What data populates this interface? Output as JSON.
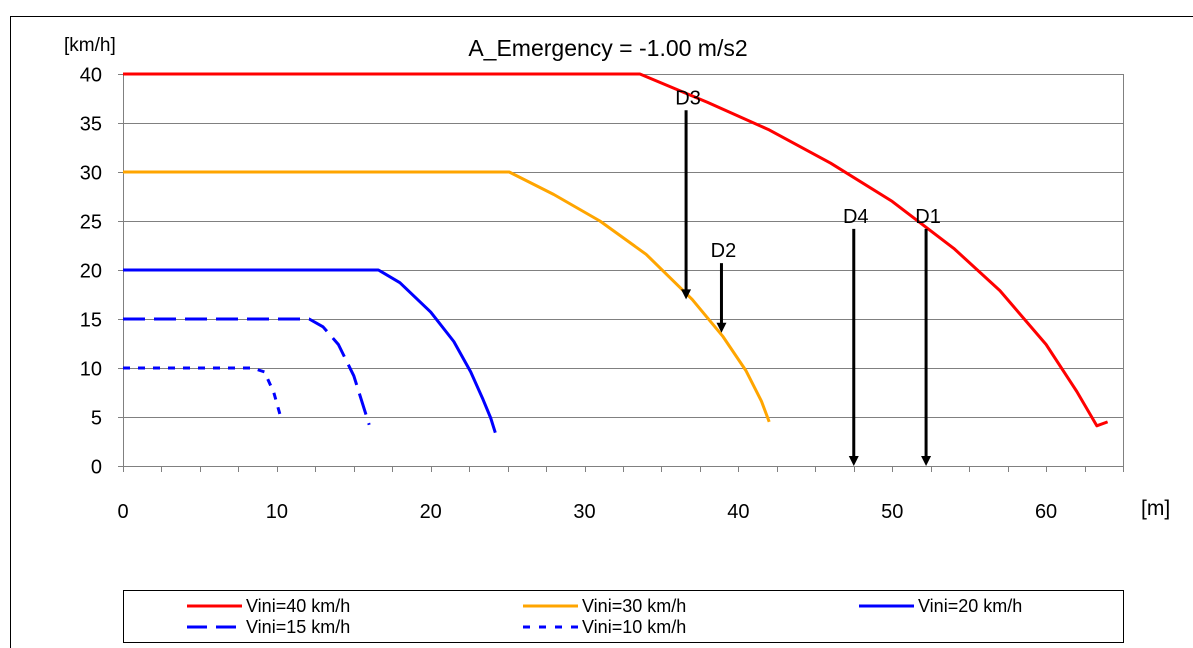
{
  "chart_data": {
    "type": "line",
    "title": "A_Emergency = -1.00 m/s2",
    "ylabel": "[km/h]",
    "xlabel": "[m]",
    "xlim": [
      0,
      65
    ],
    "ylim": [
      0,
      40
    ],
    "xticks": [
      0,
      10,
      20,
      30,
      40,
      50,
      60
    ],
    "yticks": [
      0,
      5,
      10,
      15,
      20,
      25,
      30,
      35,
      40
    ],
    "grid": "horizontal",
    "legend_position": "bottom",
    "series": [
      {
        "name": "Vini=40 km/h",
        "color": "#ff0000",
        "dash": "solid",
        "x": [
          0,
          33.6,
          38,
          42,
          46,
          50,
          54,
          57,
          60,
          62,
          63.3,
          64
        ],
        "y": [
          40,
          40,
          37.1,
          34.3,
          30.9,
          27.0,
          22.2,
          17.9,
          12.4,
          7.6,
          4.1,
          4.5
        ]
      },
      {
        "name": "Vini=30 km/h",
        "color": "#ffa500",
        "dash": "solid",
        "x": [
          0,
          25.1,
          28,
          31,
          34,
          37,
          39,
          40.5,
          41.5,
          42
        ],
        "y": [
          30,
          30,
          27.7,
          25.0,
          21.6,
          17.0,
          13.2,
          9.7,
          6.6,
          4.5
        ]
      },
      {
        "name": "Vini=20 km/h",
        "color": "#0000ff",
        "dash": "solid",
        "x": [
          0,
          16.6,
          18,
          20,
          21.5,
          22.6,
          23.4,
          23.9,
          24.2
        ],
        "y": [
          20,
          20,
          18.7,
          15.7,
          12.7,
          9.6,
          6.8,
          4.9,
          3.4
        ]
      },
      {
        "name": "Vini=15 km/h",
        "color": "#0000ff",
        "dash": "dashed",
        "x": [
          0,
          12.1,
          13,
          14,
          15,
          16
        ],
        "y": [
          15,
          15,
          14.2,
          12.4,
          9.2,
          4.2
        ]
      },
      {
        "name": "Vini=10 km/h",
        "color": "#0000ff",
        "dash": "dotted",
        "x": [
          0,
          8.4,
          9.2,
          9.8,
          10.3
        ],
        "y": [
          10,
          10,
          9.6,
          7.5,
          4.7
        ]
      }
    ],
    "annotations": [
      {
        "label": "D3",
        "x": 36.6,
        "y_top": 36.3,
        "y_bottom": 17.0
      },
      {
        "label": "D2",
        "x": 38.9,
        "y_top": 20.7,
        "y_bottom": 13.6
      },
      {
        "label": "D4",
        "x": 47.5,
        "y_top": 24.2,
        "y_bottom": 0
      },
      {
        "label": "D1",
        "x": 52.2,
        "y_top": 24.2,
        "y_bottom": 0
      }
    ]
  }
}
